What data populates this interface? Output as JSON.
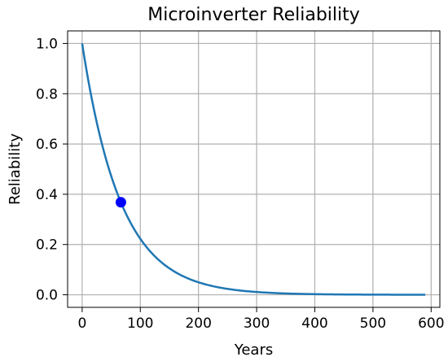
{
  "chart_data": {
    "type": "line",
    "title": "Microinverter Reliability",
    "xlabel": "Years",
    "ylabel": "Reliability",
    "xlim": [
      -25,
      615
    ],
    "ylim": [
      -0.05,
      1.05
    ],
    "grid": true,
    "xticks": [
      0,
      100,
      200,
      300,
      400,
      500,
      600
    ],
    "yticks": [
      0.0,
      0.2,
      0.4,
      0.6,
      0.8,
      1.0
    ],
    "xtick_labels": [
      "0",
      "100",
      "200",
      "300",
      "400",
      "500",
      "600"
    ],
    "ytick_labels": [
      "0.0",
      "0.2",
      "0.4",
      "0.6",
      "0.8",
      "1.0"
    ],
    "series": [
      {
        "kind": "line",
        "color": "#1f77b4",
        "function": "exp(-x/66.6)",
        "x": [
          0,
          10,
          20,
          30,
          40,
          50,
          60,
          70,
          80,
          90,
          100,
          120,
          140,
          160,
          180,
          200,
          220,
          240,
          260,
          280,
          300,
          330,
          360,
          400,
          450,
          500,
          550,
          590
        ],
        "y": [
          1.0,
          0.861,
          0.741,
          0.637,
          0.548,
          0.472,
          0.406,
          0.35,
          0.301,
          0.259,
          0.223,
          0.165,
          0.122,
          0.091,
          0.067,
          0.05,
          0.037,
          0.027,
          0.02,
          0.015,
          0.011,
          0.007,
          0.004,
          0.002,
          0.001,
          0.001,
          0.0003,
          0.0001
        ]
      },
      {
        "kind": "point",
        "color": "#0000ff",
        "x": [
          66.6
        ],
        "y": [
          0.368
        ]
      }
    ]
  }
}
